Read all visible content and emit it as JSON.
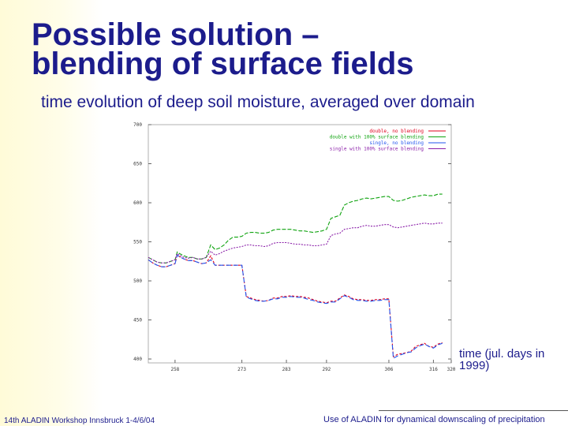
{
  "slide": {
    "title_line1": "Possible solution –",
    "title_line2": "blending of surface fields",
    "subtitle": "time evolution of deep soil moisture, averaged over domain",
    "xlabel_line1": "time (jul. days in",
    "xlabel_line2": "1999)",
    "footer_left": "14th ALADIN Workshop Innsbruck 1-4/6/04",
    "footer_right": "Use of ALADIN for dynamical downscaling of  precipitation"
  },
  "colors": {
    "title": "#1c1c8c",
    "double_no_blending": "#e0001e",
    "double_100_blending": "#0fa30f",
    "single_no_blending": "#2255ee",
    "single_100_blending": "#8a1ea8"
  },
  "chart_data": {
    "type": "line",
    "title": "",
    "xlabel": "time (jul. days in 1999)",
    "ylabel": "",
    "xlim": [
      252,
      320
    ],
    "ylim": [
      395,
      700
    ],
    "xticks": [
      258,
      273,
      283,
      292,
      306,
      316,
      320
    ],
    "xtick_labels": [
      "258",
      "273",
      "283",
      "292",
      "306",
      "316",
      "320"
    ],
    "yticks": [
      400,
      450,
      500,
      550,
      600,
      650,
      700
    ],
    "ytick_labels": [
      "400",
      "450",
      "500",
      "550",
      "600",
      "650",
      "700"
    ],
    "legend_position": "top-right",
    "x": [
      252,
      253,
      254,
      255,
      256,
      257,
      258,
      258.5,
      259,
      260,
      261,
      262,
      263,
      264,
      265,
      266,
      267,
      268,
      269,
      270,
      271,
      272,
      273,
      274,
      275,
      276,
      277,
      278,
      279,
      280,
      281,
      282,
      283,
      284,
      285,
      286,
      287,
      288,
      289,
      290,
      291,
      292,
      293,
      294,
      295,
      296,
      297,
      298,
      299,
      300,
      301,
      302,
      303,
      304,
      305,
      306,
      307,
      308,
      309,
      310,
      311,
      312,
      313,
      314,
      315,
      316,
      317,
      318
    ],
    "series": [
      {
        "name": "double, no blending",
        "color": "#e0001e",
        "values": [
          527,
          523,
          520,
          518,
          518,
          520,
          522,
          533,
          531,
          528,
          526,
          526,
          524,
          522,
          523,
          532,
          520,
          520,
          520,
          520,
          520,
          520,
          520,
          480,
          478,
          476,
          475,
          474,
          475,
          478,
          478,
          480,
          480,
          481,
          480,
          480,
          479,
          478,
          476,
          474,
          473,
          472,
          474,
          474,
          478,
          482,
          480,
          477,
          476,
          476,
          475,
          475,
          476,
          476,
          477,
          477,
          403,
          406,
          407,
          408,
          410,
          416,
          418,
          420,
          416,
          415,
          419,
          421
        ]
      },
      {
        "name": "double with 100% surface blending",
        "color": "#0fa30f",
        "values": [
          530,
          527,
          524,
          523,
          523,
          525,
          527,
          537,
          535,
          532,
          530,
          530,
          528,
          528,
          530,
          546,
          540,
          542,
          546,
          552,
          556,
          556,
          557,
          561,
          562,
          562,
          561,
          561,
          562,
          565,
          566,
          566,
          566,
          566,
          565,
          564,
          564,
          563,
          562,
          563,
          564,
          566,
          580,
          582,
          584,
          597,
          600,
          602,
          603,
          605,
          606,
          605,
          606,
          607,
          608,
          608,
          603,
          602,
          603,
          605,
          607,
          608,
          609,
          610,
          609,
          609,
          611,
          611
        ]
      },
      {
        "name": "single, no blending",
        "color": "#2255ee",
        "values": [
          527,
          523,
          520,
          518,
          518,
          520,
          522,
          533,
          531,
          528,
          526,
          526,
          524,
          522,
          523,
          527,
          520,
          520,
          520,
          520,
          520,
          520,
          520,
          479,
          477,
          475,
          474,
          474,
          475,
          477,
          477,
          479,
          479,
          480,
          479,
          479,
          478,
          476,
          475,
          473,
          472,
          471,
          473,
          473,
          477,
          481,
          479,
          476,
          475,
          475,
          474,
          474,
          475,
          475,
          476,
          476,
          401,
          404,
          406,
          408,
          409,
          414,
          417,
          419,
          416,
          414,
          418,
          420
        ]
      },
      {
        "name": "single with 100% surface blending",
        "color": "#8a1ea8",
        "values": [
          530,
          527,
          524,
          523,
          523,
          525,
          527,
          535,
          533,
          530,
          529,
          530,
          528,
          528,
          530,
          538,
          533,
          535,
          538,
          540,
          542,
          543,
          544,
          546,
          546,
          545,
          545,
          544,
          545,
          548,
          549,
          549,
          549,
          548,
          547,
          547,
          546,
          546,
          545,
          545,
          546,
          547,
          558,
          560,
          561,
          566,
          567,
          568,
          568,
          570,
          571,
          570,
          570,
          571,
          572,
          572,
          569,
          568,
          569,
          570,
          571,
          572,
          573,
          574,
          573,
          573,
          574,
          574
        ]
      }
    ]
  }
}
